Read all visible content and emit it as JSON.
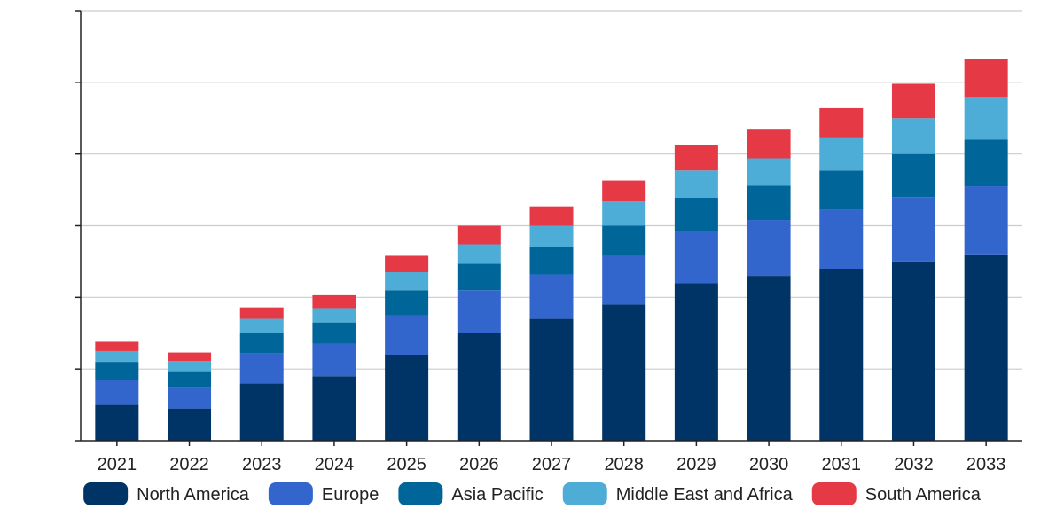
{
  "chart_data": {
    "type": "bar",
    "stacked": true,
    "title": "",
    "xlabel": "",
    "ylabel": "",
    "y_tick_labels_visible": false,
    "grid": "horizontal",
    "legend_position": "bottom",
    "ylim": [
      0,
      6
    ],
    "yticks": [
      0,
      1,
      2,
      3,
      4,
      5,
      6
    ],
    "categories": [
      "2021",
      "2022",
      "2023",
      "2024",
      "2025",
      "2026",
      "2027",
      "2028",
      "2029",
      "2030",
      "2031",
      "2032",
      "2033"
    ],
    "series": [
      {
        "name": "North America",
        "color": "#003366",
        "values": [
          0.5,
          0.45,
          0.8,
          0.9,
          1.2,
          1.5,
          1.7,
          1.9,
          2.2,
          2.3,
          2.4,
          2.5,
          2.6
        ]
      },
      {
        "name": "Europe",
        "color": "#3366CC",
        "values": [
          0.35,
          0.3,
          0.42,
          0.45,
          0.55,
          0.6,
          0.62,
          0.68,
          0.72,
          0.78,
          0.82,
          0.9,
          0.95
        ]
      },
      {
        "name": "Asia Pacific",
        "color": "#006699",
        "values": [
          0.25,
          0.22,
          0.28,
          0.3,
          0.35,
          0.37,
          0.38,
          0.42,
          0.47,
          0.48,
          0.55,
          0.6,
          0.65
        ]
      },
      {
        "name": "Middle East and Africa",
        "color": "#4DADD6",
        "values": [
          0.15,
          0.14,
          0.2,
          0.2,
          0.25,
          0.27,
          0.3,
          0.34,
          0.38,
          0.38,
          0.45,
          0.5,
          0.6
        ]
      },
      {
        "name": "South America",
        "color": "#E63946",
        "values": [
          0.13,
          0.12,
          0.16,
          0.18,
          0.23,
          0.26,
          0.27,
          0.29,
          0.35,
          0.4,
          0.42,
          0.48,
          0.53
        ]
      }
    ]
  }
}
